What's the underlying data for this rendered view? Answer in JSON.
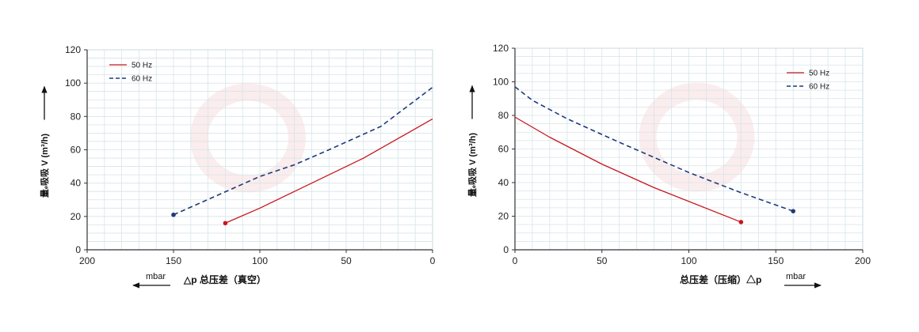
{
  "chart_data": [
    {
      "type": "line",
      "xlabel": "△p 总压差（真空）",
      "ylabel": "量ₑ吸吸 V (m³/h)",
      "unit": "mbar",
      "xlim": [
        200,
        0
      ],
      "ylim": [
        0,
        120
      ],
      "x_ticks": [
        "200",
        "150",
        "100",
        "50",
        "0"
      ],
      "y_ticks": [
        "0",
        "20",
        "40",
        "60",
        "80",
        "100",
        "120"
      ],
      "grid": true,
      "legend_position": "top-left",
      "series": [
        {
          "name": "50 Hz",
          "color": "#c8161d",
          "dash": false,
          "points": [
            [
              120,
              16
            ],
            [
              100,
              25
            ],
            [
              40,
              55
            ],
            [
              0,
              78.5
            ]
          ]
        },
        {
          "name": "60 Hz",
          "color": "#1f3a7a",
          "dash": true,
          "points": [
            [
              150,
              21
            ],
            [
              100,
              44
            ],
            [
              80,
              51
            ],
            [
              60,
              60
            ],
            [
              30,
              74
            ],
            [
              0,
              97.5
            ]
          ]
        }
      ]
    },
    {
      "type": "line",
      "xlabel": "总压差（压缩）△p",
      "ylabel": "量ₑ吸吸 V (m³/h)",
      "unit": "mbar",
      "xlim": [
        0,
        200
      ],
      "ylim": [
        0,
        120
      ],
      "x_ticks": [
        "0",
        "50",
        "100",
        "150",
        "200"
      ],
      "y_ticks": [
        "0",
        "20",
        "40",
        "60",
        "80",
        "100",
        "120"
      ],
      "grid": true,
      "legend_position": "top-right",
      "series": [
        {
          "name": "50 Hz",
          "color": "#c8161d",
          "dash": false,
          "points": [
            [
              0,
              79
            ],
            [
              20,
              67
            ],
            [
              50,
              51
            ],
            [
              80,
              37
            ],
            [
              130,
              16.5
            ]
          ]
        },
        {
          "name": "60 Hz",
          "color": "#1f3a7a",
          "dash": true,
          "points": [
            [
              0,
              97
            ],
            [
              10,
              89
            ],
            [
              30,
              78
            ],
            [
              60,
              64
            ],
            [
              100,
              46
            ],
            [
              130,
              34
            ],
            [
              160,
              23
            ]
          ]
        }
      ]
    }
  ]
}
